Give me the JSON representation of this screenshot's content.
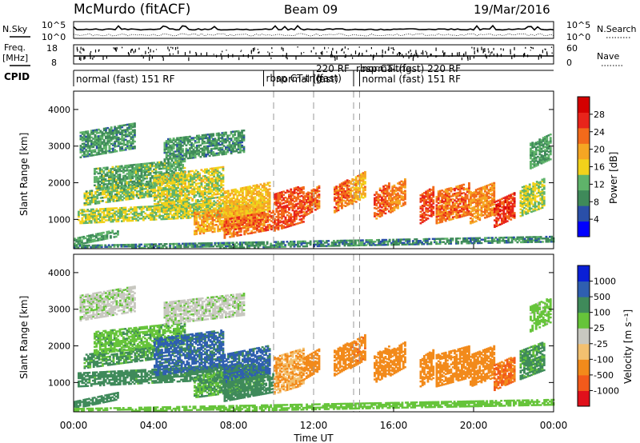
{
  "header": {
    "station": "McMurdo (fitACF)",
    "beam": "Beam 09",
    "date": "19/Mar/2016"
  },
  "noise_panel": {
    "left_label": "N.Sky",
    "right_label": "N.Search",
    "left_ticks": [
      "10^5",
      "10^0"
    ],
    "right_ticks": [
      "10^5",
      "10^0"
    ]
  },
  "freq_panel": {
    "left_label_1": "Freq.",
    "left_label_2": "[MHz]",
    "right_label": "Nave",
    "left_ticks": [
      "18",
      "8"
    ],
    "right_ticks": [
      "60",
      "0"
    ]
  },
  "cpid": {
    "label": "CPID",
    "programs": [
      {
        "text": "normal (fast) 151 RF",
        "start_h": 0.0
      },
      {
        "text": "rbsp CT-trig",
        "start_h": 9.5
      },
      {
        "text": "normal (fast)",
        "start_h": 10.0
      },
      {
        "text": "220 RF",
        "start_h": 12.0
      },
      {
        "text": "(fast)",
        "start_h": 12.0
      },
      {
        "text": "rbsp CT-trig",
        "start_h": 14.0
      },
      {
        "text": "normal (fast) 220 RF",
        "start_h": 14.3
      },
      {
        "text": "normal (fast) 151 RF",
        "start_h": 14.3
      }
    ]
  },
  "power_panel": {
    "ylabel": "Slant Range [km]",
    "colorbar_label": "Power [dB]",
    "colorbar_ticks": [
      "28",
      "24",
      "20",
      "16",
      "12",
      "8",
      "4"
    ]
  },
  "velocity_panel": {
    "ylabel": "Slant Range [km]",
    "colorbar_label": "Velocity [m s⁻¹]",
    "colorbar_ticks": [
      "1000",
      "500",
      "100",
      "25",
      "-25",
      "-100",
      "-500",
      "-1000"
    ]
  },
  "x_axis": {
    "label": "Time UT",
    "ticks": [
      "00:00",
      "04:00",
      "08:00",
      "12:00",
      "16:00",
      "20:00",
      "00:00"
    ]
  },
  "chart_data": {
    "type": "heatmap",
    "title": "McMurdo (fitACF) Beam 09 19/Mar/2016",
    "xlabel": "Time UT",
    "ylabel": "Slant Range [km]",
    "xlim": [
      0,
      24
    ],
    "ylim": [
      200,
      4500
    ],
    "y_ticks": [
      1000,
      2000,
      3000,
      4000
    ],
    "mode_change_times_h": [
      10.0,
      12.0,
      14.0,
      14.3
    ],
    "colors": {
      "power_scale": [
        "#0000ff",
        "#2a4fa8",
        "#3f8a5a",
        "#5fb36a",
        "#f2d21b",
        "#f5a623",
        "#f26a1b",
        "#e8241b",
        "#d40000"
      ],
      "velocity_scale": [
        "#0a1fd6",
        "#2f5fb0",
        "#3f8a5a",
        "#66c43a",
        "#c8c8c0",
        "#f2c070",
        "#f28a1b",
        "#f25a1b",
        "#e0101b"
      ]
    },
    "regions": [
      {
        "t0": 0.0,
        "t1": 2.2,
        "r0": 400,
        "r1": 600,
        "power": 10,
        "velocity": 200
      },
      {
        "t0": 0.2,
        "t1": 9.5,
        "r0": 1000,
        "r1": 1400,
        "power": 14,
        "velocity": 150
      },
      {
        "t0": 0.5,
        "t1": 4.0,
        "r0": 1500,
        "r1": 1900,
        "power": 13,
        "velocity": 120
      },
      {
        "t0": 1.0,
        "t1": 5.5,
        "r0": 1900,
        "r1": 2500,
        "power": 11,
        "velocity": 80
      },
      {
        "t0": 0.3,
        "t1": 3.0,
        "r0": 2800,
        "r1": 3500,
        "power": 9,
        "velocity": 10
      },
      {
        "t0": 4.0,
        "t1": 7.5,
        "r0": 1300,
        "r1": 2300,
        "power": 15,
        "velocity": 600
      },
      {
        "t0": 4.5,
        "t1": 8.5,
        "r0": 2700,
        "r1": 3300,
        "power": 9,
        "velocity": 10
      },
      {
        "t0": 6.0,
        "t1": 9.5,
        "r0": 700,
        "r1": 1300,
        "power": 20,
        "velocity": 100
      },
      {
        "t0": 7.5,
        "t1": 9.8,
        "r0": 1100,
        "r1": 1900,
        "power": 18,
        "velocity": 600
      },
      {
        "t0": 7.5,
        "t1": 10.0,
        "r0": 600,
        "r1": 1100,
        "power": 24,
        "velocity": 200
      },
      {
        "t0": 10.0,
        "t1": 11.5,
        "r0": 800,
        "r1": 1800,
        "power": 26,
        "velocity": -100
      },
      {
        "t0": 11.5,
        "t1": 12.3,
        "r0": 1200,
        "r1": 1800,
        "power": 24,
        "velocity": -150
      },
      {
        "t0": 13.0,
        "t1": 13.8,
        "r0": 1300,
        "r1": 2000,
        "power": 24,
        "velocity": -300
      },
      {
        "t0": 13.8,
        "t1": 14.6,
        "r0": 1500,
        "r1": 2200,
        "power": 20,
        "velocity": -400
      },
      {
        "t0": 15.0,
        "t1": 15.8,
        "r0": 1100,
        "r1": 1900,
        "power": 25,
        "velocity": -300
      },
      {
        "t0": 15.8,
        "t1": 16.6,
        "r0": 1300,
        "r1": 2000,
        "power": 22,
        "velocity": -250
      },
      {
        "t0": 17.3,
        "t1": 18.0,
        "r0": 1000,
        "r1": 1800,
        "power": 26,
        "velocity": -300
      },
      {
        "t0": 18.1,
        "t1": 19.8,
        "r0": 1000,
        "r1": 1900,
        "power": 24,
        "velocity": -350
      },
      {
        "t0": 19.8,
        "t1": 21.0,
        "r0": 1000,
        "r1": 1900,
        "power": 22,
        "velocity": -300
      },
      {
        "t0": 21.0,
        "t1": 22.0,
        "r0": 900,
        "r1": 1600,
        "power": 27,
        "velocity": -500
      },
      {
        "t0": 22.3,
        "t1": 23.5,
        "r0": 1200,
        "r1": 2000,
        "power": 14,
        "velocity": 120
      },
      {
        "t0": 22.8,
        "t1": 23.8,
        "r0": 2500,
        "r1": 3200,
        "power": 10,
        "velocity": 50
      },
      {
        "t0": 0.0,
        "t1": 24.0,
        "r0": 250,
        "r1": 400,
        "power": 8,
        "velocity": 60
      }
    ]
  }
}
